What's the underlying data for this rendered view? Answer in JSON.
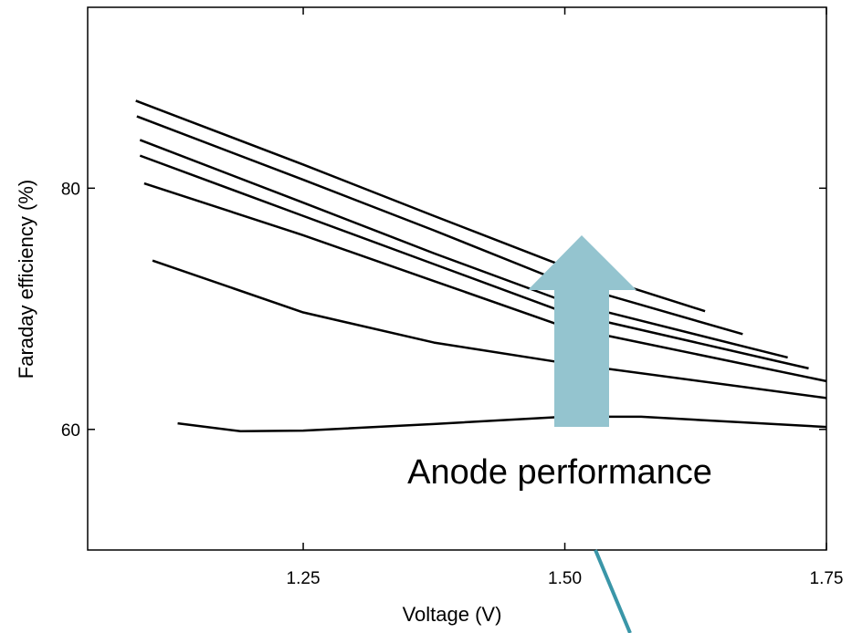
{
  "chart_data": {
    "type": "line",
    "xlabel": "Voltage (V)",
    "ylabel": "Faraday efficiency (%)",
    "annotation": "Anode performance",
    "xlim": [
      1.044,
      1.75
    ],
    "ylim": [
      50,
      95
    ],
    "xticks": [
      1.25,
      {
        "value": 1.5,
        "label": "1.50"
      },
      1.75
    ],
    "yticks": [
      60,
      80
    ],
    "color": "#000000",
    "series": [
      {
        "x": [
          1.09,
          1.25,
          1.375,
          1.5,
          1.634
        ],
        "values": [
          87.25,
          81.96,
          77.7,
          73.5,
          69.8
        ]
      },
      {
        "x": [
          1.091,
          1.25,
          1.375,
          1.5,
          1.67
        ],
        "values": [
          85.96,
          80.7,
          76.5,
          72.15,
          67.9
        ]
      },
      {
        "x": [
          1.094,
          1.25,
          1.375,
          1.5,
          1.713
        ],
        "values": [
          84.0,
          78.8,
          74.6,
          70.6,
          65.96
        ]
      },
      {
        "x": [
          1.094,
          1.25,
          1.375,
          1.5,
          1.733
        ],
        "values": [
          82.7,
          77.7,
          73.7,
          69.7,
          65.06
        ]
      },
      {
        "x": [
          1.098,
          1.25,
          1.375,
          1.5,
          1.75
        ],
        "values": [
          80.4,
          76.1,
          72.3,
          68.5,
          64.0
        ]
      },
      {
        "x": [
          1.106,
          1.25,
          1.375,
          1.5,
          1.75
        ],
        "values": [
          74.0,
          69.7,
          67.2,
          65.5,
          62.6
        ]
      },
      {
        "x": [
          1.13,
          1.19,
          1.25,
          1.375,
          1.5,
          1.573,
          1.75
        ],
        "values": [
          60.5,
          59.85,
          59.9,
          60.45,
          61.05,
          61.05,
          60.2
        ]
      }
    ]
  }
}
